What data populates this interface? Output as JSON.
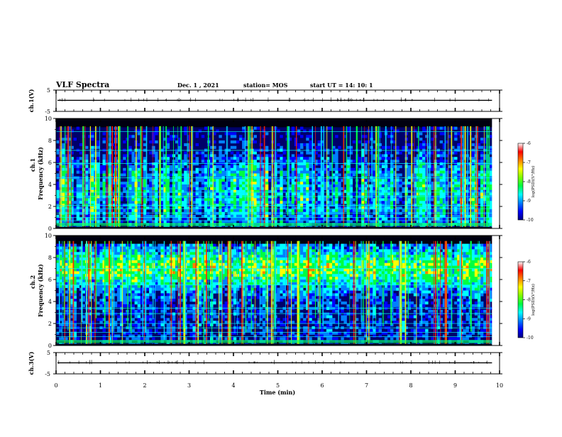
{
  "header": {
    "title": "VLF Spectra",
    "date": "Dec. 1 , 2021",
    "station": "station= MOS",
    "start": "start  UT =   14: 10: 1"
  },
  "chart_data": [
    {
      "type": "line",
      "panel": "ch1-waveform",
      "ylabel": "ch.1(V)",
      "ylim": [
        -5,
        5
      ],
      "yticks": [
        "5",
        "-5"
      ],
      "xlim": [
        0,
        10
      ],
      "baseline_value": 0.2,
      "grid": false
    },
    {
      "type": "heatmap",
      "panel": "ch1-spectrogram",
      "ylabel": "ch.1\nFrequency (kHz)",
      "ylabel_line1": "ch.1",
      "ylabel_line2": "Frequency (kHz)",
      "ylim": [
        0,
        10
      ],
      "yticks": [
        "0",
        "2",
        "4",
        "6",
        "8",
        "10"
      ],
      "xlim": [
        0,
        10
      ],
      "data_end_min": 9.83,
      "hum_lines_khz": [
        0.4,
        0.7,
        1.0,
        1.4,
        1.8,
        2.1,
        2.9,
        3.3,
        4.6,
        5.9,
        7.1,
        8.8
      ],
      "colorbar": {
        "label": "log(PSD)(V²/Hz)",
        "ticks": [
          "-6",
          "-7",
          "-8",
          "-9",
          "-10"
        ],
        "range": [
          -10,
          -6
        ]
      }
    },
    {
      "type": "heatmap",
      "panel": "ch2-spectrogram",
      "ylabel": "ch.2\nFrequency (kHz)",
      "ylabel_line1": "ch.2",
      "ylabel_line2": "Frequency (kHz)",
      "ylim": [
        0,
        10
      ],
      "yticks": [
        "0",
        "2",
        "4",
        "6",
        "8",
        "10"
      ],
      "xlim": [
        0,
        10
      ],
      "data_end_min": 9.83,
      "hum_lines_khz": [
        0.4,
        0.8,
        1.2,
        1.6,
        2.0,
        2.9,
        3.4,
        5.5,
        7.0
      ],
      "colorbar": {
        "label": "log(PSD)(V²/Hz)",
        "ticks": [
          "-6",
          "-7",
          "-8",
          "-9",
          "-10"
        ],
        "range": [
          -10,
          -6
        ]
      }
    },
    {
      "type": "line",
      "panel": "ch3-waveform",
      "ylabel": "ch.3(V)",
      "ylim": [
        -5,
        5
      ],
      "yticks": [
        "5",
        "-5"
      ],
      "xlim": [
        0,
        10
      ],
      "baseline_value": 0.2,
      "xlabel": "Time  (min)",
      "xticks": [
        "0",
        "1",
        "2",
        "3",
        "4",
        "5",
        "6",
        "7",
        "8",
        "9",
        "10"
      ],
      "grid": false
    }
  ],
  "colors": {
    "colormap": [
      "#000080",
      "#0000ff",
      "#0080ff",
      "#00ffff",
      "#00ff40",
      "#ffff00",
      "#ff8000",
      "#ff0000",
      "#ffffff"
    ],
    "background": "#ffffff",
    "frame": "#000000"
  }
}
